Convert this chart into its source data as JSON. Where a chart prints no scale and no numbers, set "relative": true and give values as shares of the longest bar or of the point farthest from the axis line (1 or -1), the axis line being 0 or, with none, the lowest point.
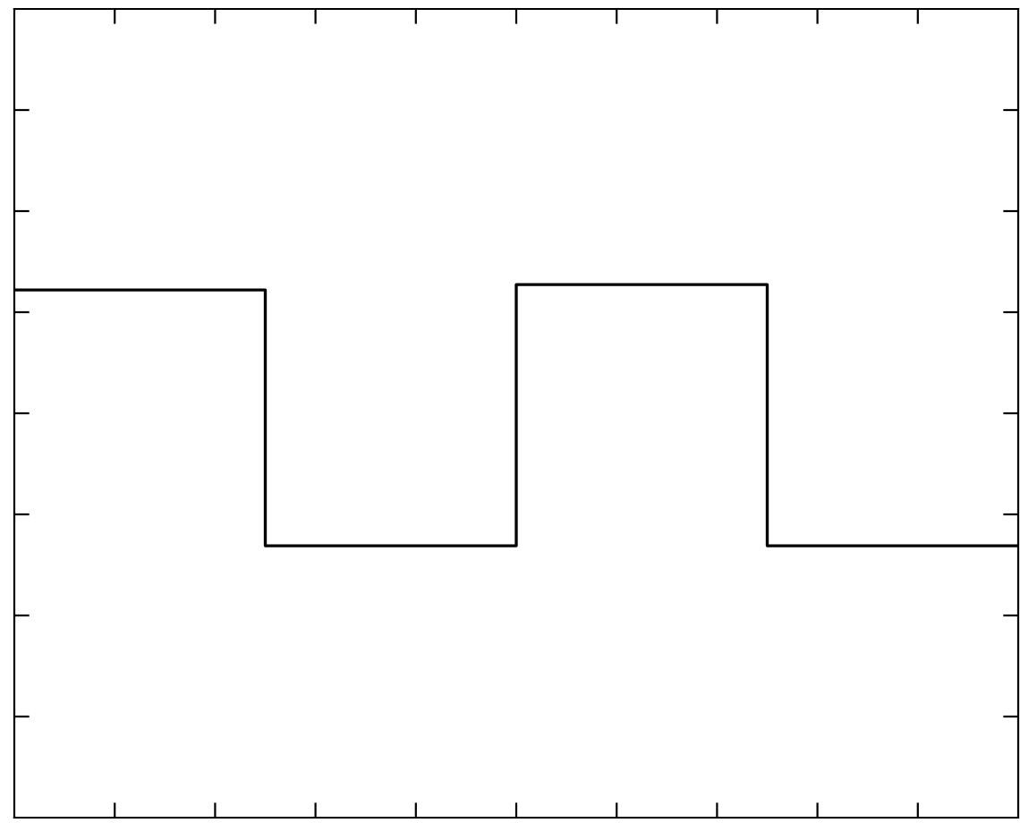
{
  "chart_data": {
    "type": "step",
    "relative": true,
    "categories": [
      null,
      null,
      null,
      null,
      null
    ],
    "values": [
      0.99,
      0.51,
      1,
      0.51,
      0.51
    ],
    "color": "#000000",
    "tick_labels": false,
    "grid": false,
    "legend": false
  }
}
